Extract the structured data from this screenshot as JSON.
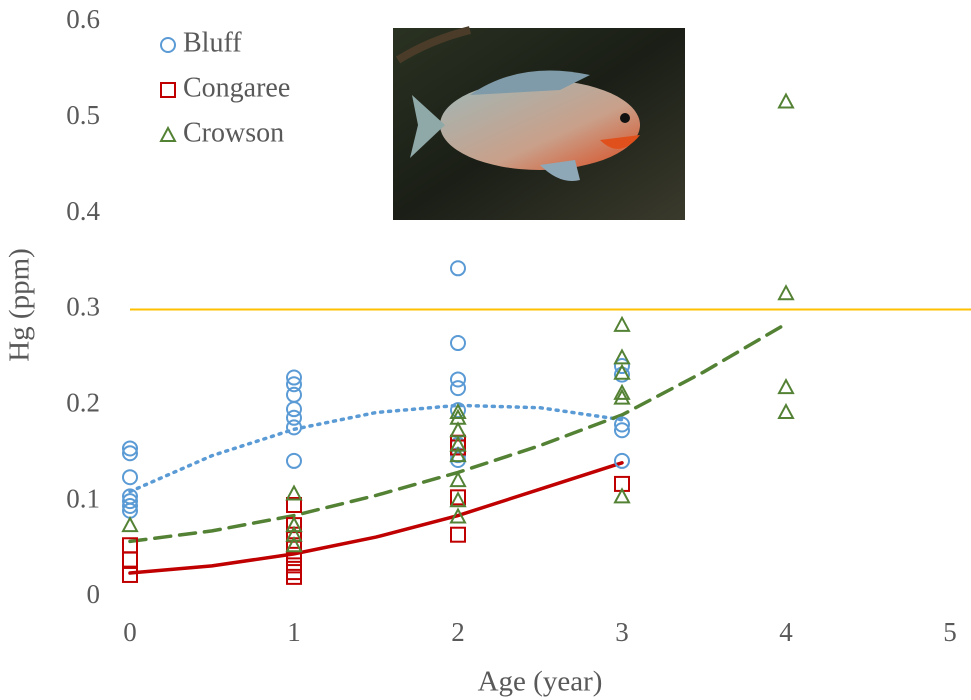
{
  "chart_data": {
    "type": "scatter",
    "xlabel": "Age (year)",
    "ylabel": "Hg (ppm)",
    "xlim": [
      0,
      5
    ],
    "xticks": [
      0,
      1,
      2,
      3,
      4,
      5
    ],
    "ylim": [
      0,
      0.6
    ],
    "yticks": [
      0,
      0.1,
      0.2,
      0.3,
      0.4,
      0.5,
      0.6
    ],
    "reference_line": {
      "value": 0.3,
      "color": "#ffc000"
    },
    "series": [
      {
        "name": "Bluff",
        "color": "#5b9bd5",
        "marker": "circle",
        "x": [
          0,
          0,
          0,
          0,
          0,
          0,
          0,
          1,
          1,
          1,
          1,
          1,
          1,
          1,
          2,
          2,
          2,
          2,
          2,
          2,
          2,
          2,
          3,
          3,
          3,
          3,
          3
        ],
        "values": [
          0.155,
          0.15,
          0.125,
          0.105,
          0.1,
          0.095,
          0.09,
          0.229,
          0.222,
          0.211,
          0.196,
          0.187,
          0.177,
          0.142,
          0.343,
          0.265,
          0.227,
          0.218,
          0.195,
          0.159,
          0.148,
          0.143,
          0.241,
          0.232,
          0.18,
          0.174,
          0.142
        ]
      },
      {
        "name": "Congaree",
        "color": "#c00000",
        "marker": "square",
        "x": [
          0,
          0,
          0,
          1,
          1,
          1,
          1,
          1,
          1,
          1,
          1,
          2,
          2,
          2,
          2,
          3
        ],
        "values": [
          0.054,
          0.039,
          0.023,
          0.096,
          0.075,
          0.065,
          0.054,
          0.044,
          0.033,
          0.026,
          0.021,
          0.161,
          0.156,
          0.104,
          0.065,
          0.118
        ]
      },
      {
        "name": "Crowson",
        "color": "#548235",
        "marker": "triangle",
        "x": [
          0,
          1,
          1,
          1,
          1,
          2,
          2,
          2,
          2,
          2,
          2,
          2,
          2,
          3,
          3,
          3,
          3,
          3,
          3,
          4,
          4,
          4,
          4
        ],
        "values": [
          0.075,
          0.108,
          0.075,
          0.065,
          0.054,
          0.193,
          0.187,
          0.174,
          0.159,
          0.148,
          0.122,
          0.101,
          0.084,
          0.284,
          0.25,
          0.234,
          0.213,
          0.208,
          0.105,
          0.517,
          0.317,
          0.219,
          0.193
        ]
      }
    ],
    "trendlines": [
      {
        "color": "#5b9bd5",
        "style": "dotted",
        "x": [
          0,
          0.5,
          1,
          1.5,
          2,
          2.5,
          3
        ],
        "values": [
          0.11,
          0.1475,
          0.175,
          0.1925,
          0.2,
          0.1975,
          0.185
        ]
      },
      {
        "color": "#c00000",
        "style": "solid",
        "x": [
          0,
          0.5,
          1,
          1.5,
          2,
          2.5,
          3
        ],
        "values": [
          0.025,
          0.0325,
          0.045,
          0.0625,
          0.085,
          0.1125,
          0.14
        ]
      },
      {
        "color": "#548235",
        "style": "dashed",
        "x": [
          0,
          0.5,
          1,
          1.5,
          2,
          2.5,
          3,
          3.5,
          4
        ],
        "values": [
          0.058,
          0.069,
          0.085,
          0.106,
          0.13,
          0.158,
          0.19,
          0.235,
          0.285
        ]
      }
    ]
  }
}
